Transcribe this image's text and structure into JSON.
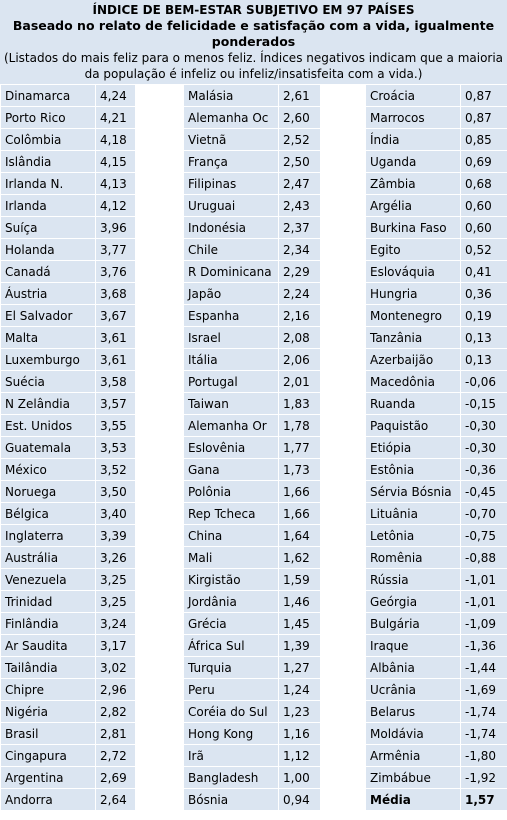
{
  "header": {
    "title": "ÍNDICE DE BEM-ESTAR SUBJETIVO EM 97 PAÍSES",
    "subtitle": "Baseado no relato de felicidade e satisfação com a vida, igualmente ponderados",
    "note": "(Listados do mais feliz para o menos feliz. Índices negativos indicam que a maioria da população é infeliz ou infeliz/insatisfeita com a vida.)"
  },
  "table": {
    "columns": [
      {
        "rows": [
          [
            "Dinamarca",
            "4,24"
          ],
          [
            "Porto Rico",
            "4,21"
          ],
          [
            "Colômbia",
            "4,18"
          ],
          [
            "Islândia",
            "4,15"
          ],
          [
            "Irlanda N.",
            "4,13"
          ],
          [
            "Irlanda",
            "4,12"
          ],
          [
            "Suíça",
            "3,96"
          ],
          [
            "Holanda",
            "3,77"
          ],
          [
            "Canadá",
            "3,76"
          ],
          [
            "Áustria",
            "3,68"
          ],
          [
            "El Salvador",
            "3,67"
          ],
          [
            "Malta",
            "3,61"
          ],
          [
            "Luxemburgo",
            "3,61"
          ],
          [
            "Suécia",
            "3,58"
          ],
          [
            "N Zelândia",
            "3,57"
          ],
          [
            "Est. Unidos",
            "3,55"
          ],
          [
            "Guatemala",
            "3,53"
          ],
          [
            "México",
            "3,52"
          ],
          [
            "Noruega",
            "3,50"
          ],
          [
            "Bélgica",
            "3,40"
          ],
          [
            "Inglaterra",
            "3,39"
          ],
          [
            "Austrália",
            "3,26"
          ],
          [
            "Venezuela",
            "3,25"
          ],
          [
            "Trinidad",
            "3,25"
          ],
          [
            "Finlândia",
            "3,24"
          ],
          [
            "Ar Saudita",
            "3,17"
          ],
          [
            "Tailândia",
            "3,02"
          ],
          [
            "Chipre",
            "2,96"
          ],
          [
            "Nigéria",
            "2,82"
          ],
          [
            "Brasil",
            "2,81"
          ],
          [
            "Cingapura",
            "2,72"
          ],
          [
            "Argentina",
            "2,69"
          ],
          [
            "Andorra",
            "2,64"
          ]
        ]
      },
      {
        "rows": [
          [
            "Malásia",
            "2,61"
          ],
          [
            "Alemanha Oc",
            "2,60"
          ],
          [
            "Vietnã",
            "2,52"
          ],
          [
            "França",
            "2,50"
          ],
          [
            "Filipinas",
            "2,47"
          ],
          [
            "Uruguai",
            "2,43"
          ],
          [
            "Indonésia",
            "2,37"
          ],
          [
            "Chile",
            "2,34"
          ],
          [
            "R Dominicana",
            "2,29"
          ],
          [
            "Japão",
            "2,24"
          ],
          [
            "Espanha",
            "2,16"
          ],
          [
            "Israel",
            "2,08"
          ],
          [
            "Itália",
            "2,06"
          ],
          [
            "Portugal",
            "2,01"
          ],
          [
            "Taiwan",
            "1,83"
          ],
          [
            "Alemanha Or",
            "1,78"
          ],
          [
            "Eslovênia",
            "1,77"
          ],
          [
            "Gana",
            "1,73"
          ],
          [
            "Polônia",
            "1,66"
          ],
          [
            "Rep Tcheca",
            "1,66"
          ],
          [
            "China",
            "1,64"
          ],
          [
            "Mali",
            "1,62"
          ],
          [
            "Kirgistão",
            "1,59"
          ],
          [
            "Jordânia",
            "1,46"
          ],
          [
            "Grécia",
            "1,45"
          ],
          [
            "África Sul",
            "1,39"
          ],
          [
            "Turquia",
            "1,27"
          ],
          [
            "Peru",
            "1,24"
          ],
          [
            "Coréia do Sul",
            "1,23"
          ],
          [
            "Hong Kong",
            "1,16"
          ],
          [
            "Irã",
            "1,12"
          ],
          [
            "Bangladesh",
            "1,00"
          ],
          [
            "Bósnia",
            "0,94"
          ]
        ]
      },
      {
        "rows": [
          [
            "Croácia",
            "0,87"
          ],
          [
            "Marrocos",
            "0,87"
          ],
          [
            "Índia",
            "0,85"
          ],
          [
            "Uganda",
            "0,69"
          ],
          [
            "Zâmbia",
            "0,68"
          ],
          [
            "Argélia",
            "0,60"
          ],
          [
            "Burkina Faso",
            "0,60"
          ],
          [
            "Egito",
            "0,52"
          ],
          [
            "Eslováquia",
            "0,41"
          ],
          [
            "Hungria",
            "0,36"
          ],
          [
            "Montenegro",
            "0,19"
          ],
          [
            "Tanzânia",
            "0,13"
          ],
          [
            "Azerbaijão",
            "0,13"
          ],
          [
            "Macedônia",
            "-0,06"
          ],
          [
            "Ruanda",
            "-0,15"
          ],
          [
            "Paquistão",
            "-0,30"
          ],
          [
            "Etiópia",
            "-0,30"
          ],
          [
            "Estônia",
            "-0,36"
          ],
          [
            "Sérvia Bósnia",
            "-0,45"
          ],
          [
            "Lituânia",
            "-0,70"
          ],
          [
            "Letônia",
            "-0,75"
          ],
          [
            "Romênia",
            "-0,88"
          ],
          [
            "Rússia",
            "-1,01"
          ],
          [
            "Geórgia",
            "-1,01"
          ],
          [
            "Bulgária",
            "-1,09"
          ],
          [
            "Iraque",
            "-1,36"
          ],
          [
            "Albânia",
            "-1,44"
          ],
          [
            "Ucrânia",
            "-1,69"
          ],
          [
            "Belarus",
            "-1,74"
          ],
          [
            "Moldávia",
            "-1,74"
          ],
          [
            "Armênia",
            "-1,80"
          ],
          [
            "Zimbábue",
            "-1,92"
          ],
          [
            "Média",
            "1,57"
          ]
        ]
      }
    ]
  }
}
